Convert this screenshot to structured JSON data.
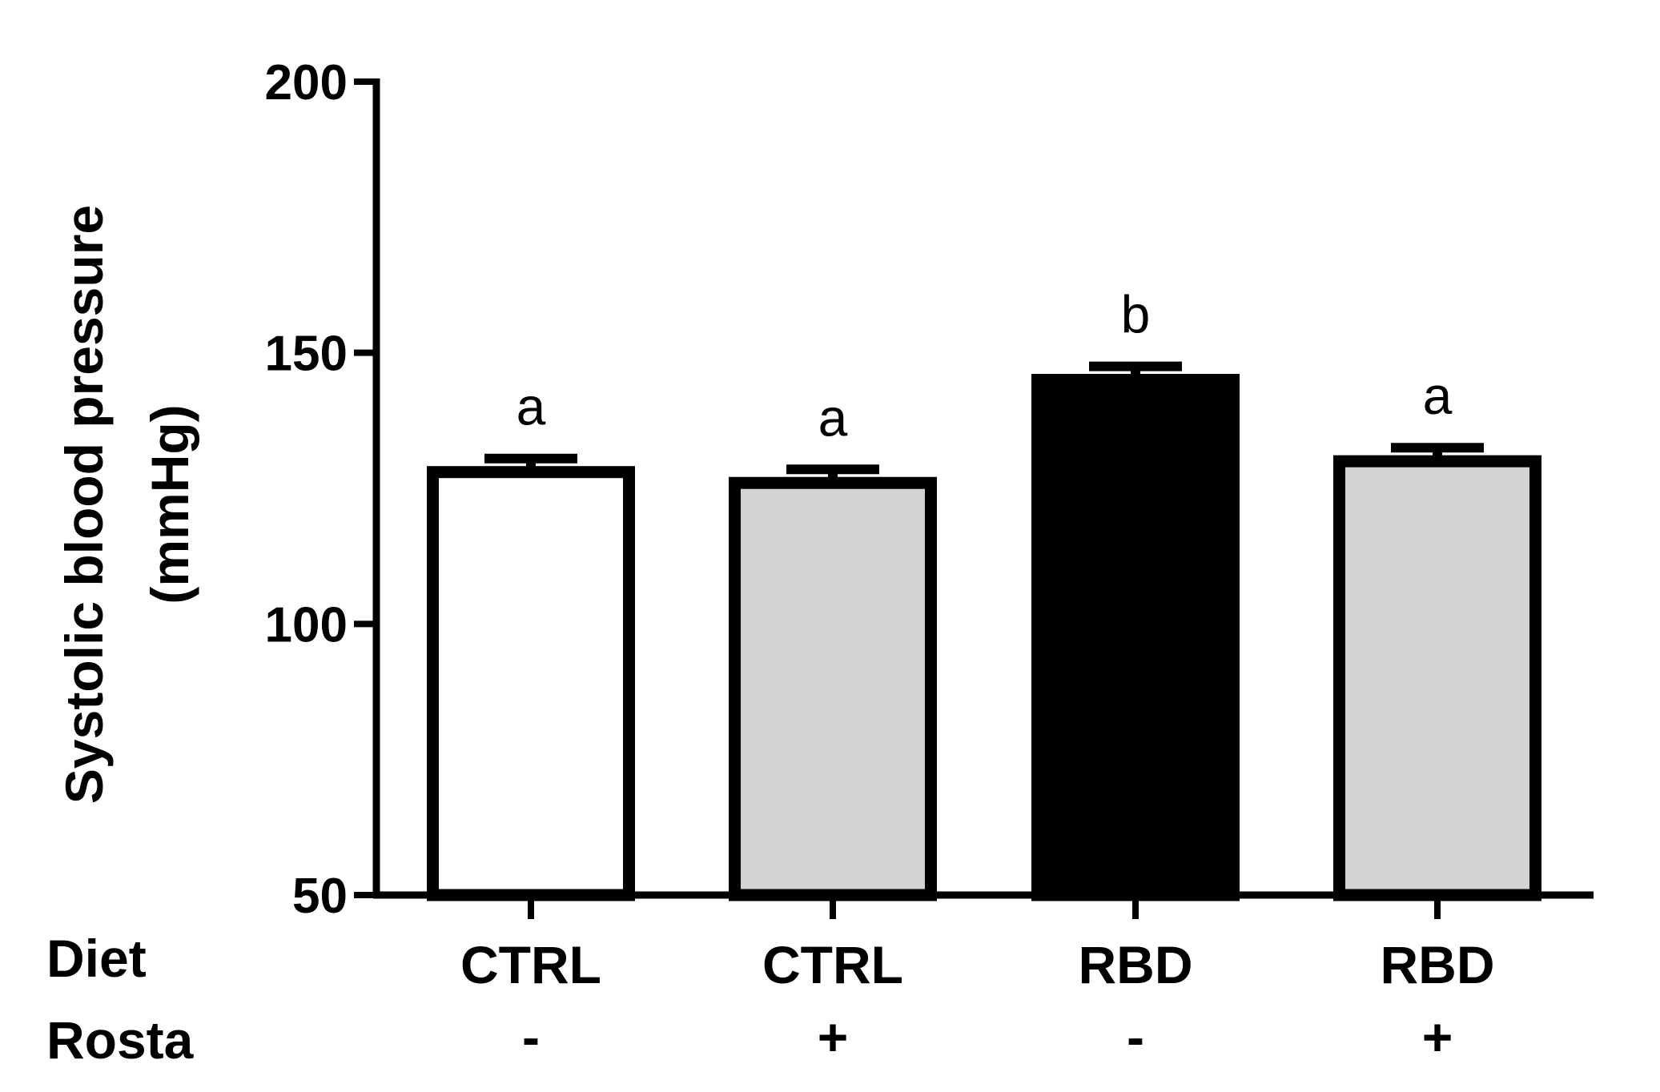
{
  "chart_data": {
    "type": "bar",
    "ylabel_line1": "Systolic blood pressure",
    "ylabel_line2": "(mmHg)",
    "ylim": [
      50,
      200
    ],
    "yticks": [
      "50",
      "100",
      "150",
      "200"
    ],
    "row_labels": {
      "diet": "Diet",
      "rosta": "Rosta"
    },
    "diet": [
      "CTRL",
      "CTRL",
      "RBD",
      "RBD"
    ],
    "rosta": [
      "-",
      "+",
      "-",
      "+"
    ],
    "values": [
      128,
      126,
      145,
      130
    ],
    "errors": [
      2.5,
      2.5,
      2.5,
      2.5
    ],
    "significance": [
      "a",
      "a",
      "b",
      "a"
    ],
    "fills": [
      "#ffffff",
      "#d3d3d3",
      "#000000",
      "#d3d3d3"
    ],
    "stroke": "#000000",
    "grid": false
  }
}
